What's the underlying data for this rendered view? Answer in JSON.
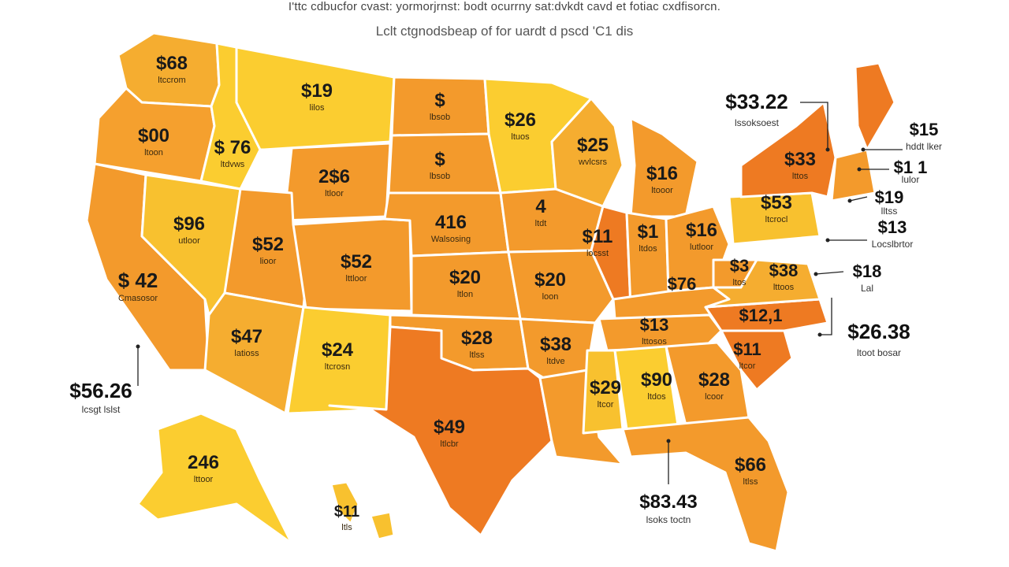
{
  "title": "I'ttc cdbucfor cvast: yormorjrnst: bodt ocurrny sat:dvkdt cavd et fotiac cxdfisorcn.",
  "subtitle": "Lclt ctgnodsbeap of for uardt d pscd 'C1 dis",
  "colors": {
    "deep_orange": "#ee7a22",
    "orange": "#f39a2c",
    "light_orange": "#f5ad30",
    "yellow_orange": "#f8c12f",
    "yellow": "#fbcd30",
    "border": "#ffffff"
  },
  "states": [
    {
      "id": "WA",
      "value": "$68",
      "sub": "ltccrom",
      "color": "#f5ad30"
    },
    {
      "id": "OR",
      "value": "$00",
      "sub": "ltoon",
      "color": "#f5a02e"
    },
    {
      "id": "CA",
      "value": "$ 42",
      "sub": "Cmasosor",
      "color": "#f39a2c"
    },
    {
      "id": "ID",
      "value": "$ 76",
      "sub": "ltdvws",
      "color": "#fbcd30"
    },
    {
      "id": "NV",
      "value": "$96",
      "sub": "utloor",
      "color": "#f8c12f"
    },
    {
      "id": "MT",
      "value": "$19",
      "sub": "lilos",
      "color": "#fbcd30"
    },
    {
      "id": "WY",
      "value": "2$6",
      "sub": "ltloor",
      "color": "#f39a2c"
    },
    {
      "id": "UT",
      "value": "$52",
      "sub": "lioor",
      "color": "#f39a2c"
    },
    {
      "id": "CO",
      "value": "$52",
      "sub": "lttloor",
      "color": "#f39a2c"
    },
    {
      "id": "AZ",
      "value": "$47",
      "sub": "latioss",
      "color": "#f5ad30"
    },
    {
      "id": "NM",
      "value": "$24",
      "sub": "ltcrosn",
      "color": "#fbcd30"
    },
    {
      "id": "ND",
      "value": "$",
      "sub": "lbsob",
      "color": "#f39a2c"
    },
    {
      "id": "SD",
      "value": "$",
      "sub": "lbsob",
      "color": "#f39a2c"
    },
    {
      "id": "NE",
      "value": "416",
      "sub": "Walsosing",
      "color": "#f39a2c"
    },
    {
      "id": "KS",
      "value": "$20",
      "sub": "ltlon",
      "color": "#f39a2c"
    },
    {
      "id": "OK",
      "value": "$28",
      "sub": "ltlss",
      "color": "#f39a2c"
    },
    {
      "id": "TX",
      "value": "$49",
      "sub": "ltlcbr",
      "color": "#ee7a22"
    },
    {
      "id": "MN",
      "value": "$26",
      "sub": "ltuos",
      "color": "#fbcd30"
    },
    {
      "id": "IA",
      "value": "4",
      "sub": "ltdt",
      "color": "#f39a2c"
    },
    {
      "id": "MO",
      "value": "$20",
      "sub": "loon",
      "color": "#f39a2c"
    },
    {
      "id": "AR",
      "value": "$38",
      "sub": "ltdve",
      "color": "#f39a2c"
    },
    {
      "id": "LA",
      "value": "",
      "sub": "",
      "color": "#f39a2c"
    },
    {
      "id": "WI",
      "value": "$25",
      "sub": "wvlcsrs",
      "color": "#f5ad30"
    },
    {
      "id": "IL",
      "value": "$11",
      "sub": "locsst",
      "color": "#ee7a22"
    },
    {
      "id": "MI",
      "value": "$16",
      "sub": "ltooor",
      "color": "#f39a2c"
    },
    {
      "id": "IN",
      "value": "$1",
      "sub": "ltdos",
      "color": "#f39a2c"
    },
    {
      "id": "OH",
      "value": "$16",
      "sub": "lutloor",
      "color": "#f39a2c"
    },
    {
      "id": "KY",
      "value": "$76",
      "sub": "",
      "color": "#f39a2c"
    },
    {
      "id": "TN",
      "value": "$13",
      "sub": "lttosos",
      "color": "#f39a2c"
    },
    {
      "id": "MS",
      "value": "$29",
      "sub": "ltcor",
      "color": "#f8c12f"
    },
    {
      "id": "AL",
      "value": "$90",
      "sub": "ltdos",
      "color": "#fbcd30"
    },
    {
      "id": "GA",
      "value": "$28",
      "sub": "lcoor",
      "color": "#f39a2c"
    },
    {
      "id": "FL",
      "value": "$66",
      "sub": "ltlss",
      "color": "#f39a2c"
    },
    {
      "id": "SC",
      "value": "$11",
      "sub": "ltcor",
      "color": "#ee7a22"
    },
    {
      "id": "NC",
      "value": "$12,1",
      "sub": "",
      "color": "#ee7a22"
    },
    {
      "id": "VA",
      "value": "$38",
      "sub": "lttoos",
      "color": "#f5ad30"
    },
    {
      "id": "WV",
      "value": "$3",
      "sub": "ltos",
      "color": "#f39a2c"
    },
    {
      "id": "PA",
      "value": "$53",
      "sub": "ltcrocl",
      "color": "#f8c12f"
    },
    {
      "id": "NY",
      "value": "$33",
      "sub": "lttos",
      "color": "#ee7a22"
    },
    {
      "id": "ME",
      "value": "",
      "sub": "",
      "color": "#ee7a22"
    },
    {
      "id": "NE_SMALL",
      "value": "",
      "sub": "",
      "color": "#f39a2c"
    },
    {
      "id": "AK",
      "value": "246",
      "sub": "lttoor",
      "color": "#fbcd30"
    },
    {
      "id": "HI",
      "value": "$11",
      "sub": "ltls",
      "color": "#f8c12f"
    }
  ],
  "callouts": [
    {
      "id": "vermont",
      "value": "$33.22",
      "sub": "lssoksoest"
    },
    {
      "id": "nh",
      "value": "$15",
      "sub": "hddt lker"
    },
    {
      "id": "ma",
      "value": "$1 1",
      "sub": "lulor"
    },
    {
      "id": "ri",
      "value": "$19",
      "sub": "lltss"
    },
    {
      "id": "ct",
      "value": "$13",
      "sub": "Locslbrtor"
    },
    {
      "id": "nj",
      "value": "$18",
      "sub": "Lal"
    },
    {
      "id": "de",
      "value": "$26.38",
      "sub": "ltoot bosar"
    },
    {
      "id": "west",
      "value": "$56.26",
      "sub": "lcsgt lslst"
    },
    {
      "id": "gulf",
      "value": "$83.43",
      "sub": "lsoks toctn"
    }
  ]
}
